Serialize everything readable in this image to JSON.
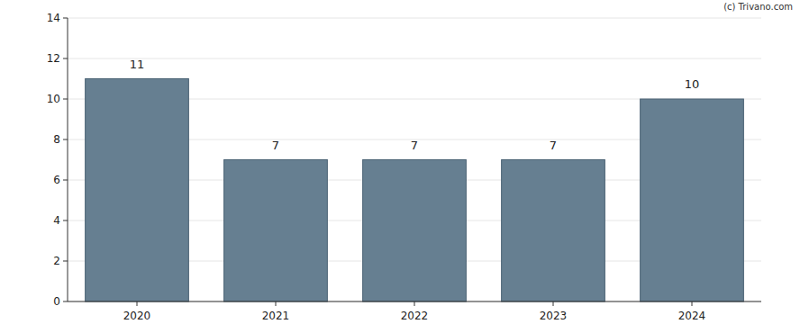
{
  "chart_data": {
    "type": "bar",
    "categories": [
      "2020",
      "2021",
      "2022",
      "2023",
      "2024"
    ],
    "values": [
      11,
      7,
      7,
      7,
      10
    ],
    "color": "#667f91",
    "ylim": [
      0,
      14
    ],
    "yticks": [
      0,
      2,
      4,
      6,
      8,
      10,
      12,
      14
    ],
    "grid": true,
    "data_labels": true,
    "annotations": [
      "(c) Trivano.com"
    ]
  }
}
